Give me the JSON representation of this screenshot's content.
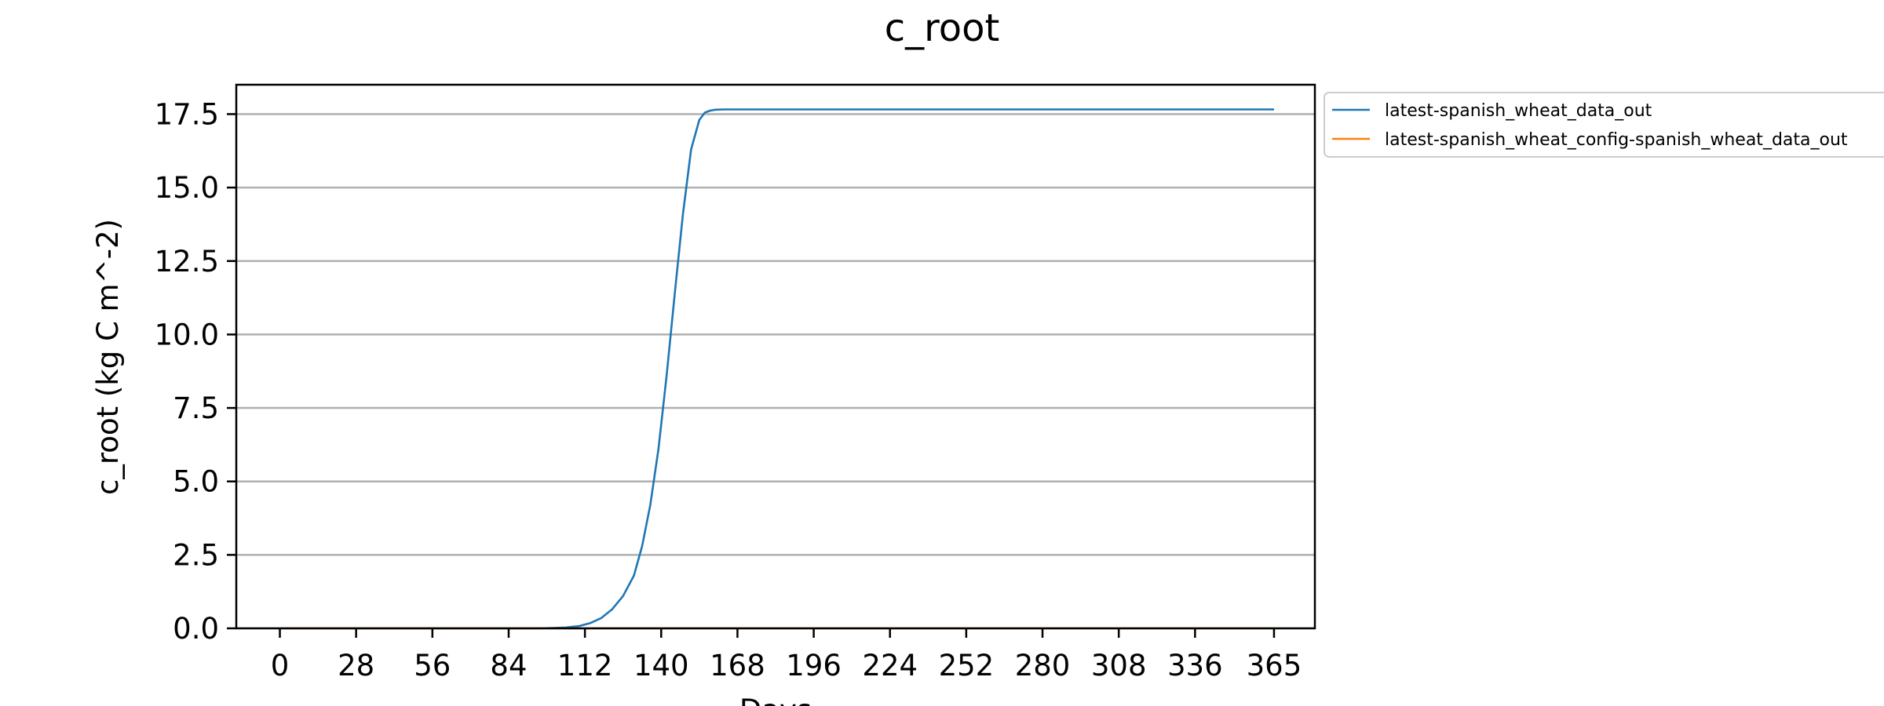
{
  "chart_data": {
    "type": "line",
    "title": "c_root",
    "xlabel": "Days",
    "ylabel": "c_root (kg C m^-2)",
    "xlim": [
      -16,
      380
    ],
    "ylim": [
      0,
      18.5
    ],
    "xticks": [
      0,
      28,
      56,
      84,
      112,
      140,
      168,
      196,
      224,
      252,
      280,
      308,
      336,
      365
    ],
    "yticks": [
      0.0,
      2.5,
      5.0,
      7.5,
      10.0,
      12.5,
      15.0,
      17.5
    ],
    "ytick_labels": [
      "0.0",
      "2.5",
      "5.0",
      "7.5",
      "10.0",
      "12.5",
      "15.0",
      "17.5"
    ],
    "grid": "y",
    "legend_position": "outside-top-right",
    "series": [
      {
        "name": "latest-spanish_wheat_data_out",
        "color": "#1f77b4",
        "x": [
          0,
          50,
          95,
          100,
          105,
          110,
          114,
          118,
          122,
          126,
          130,
          133,
          136,
          139,
          142,
          145,
          148,
          151,
          154,
          156,
          158,
          160,
          163,
          168,
          200,
          250,
          300,
          365
        ],
        "y": [
          0,
          0,
          0,
          0.01,
          0.03,
          0.08,
          0.18,
          0.35,
          0.65,
          1.1,
          1.8,
          2.8,
          4.2,
          6.1,
          8.6,
          11.4,
          14.1,
          16.3,
          17.3,
          17.55,
          17.62,
          17.65,
          17.66,
          17.66,
          17.66,
          17.66,
          17.66,
          17.66
        ]
      },
      {
        "name": "latest-spanish_wheat_config-spanish_wheat_data_out",
        "color": "#ff7f0e",
        "x": [
          0,
          365
        ],
        "y": [
          0,
          0
        ]
      }
    ]
  }
}
